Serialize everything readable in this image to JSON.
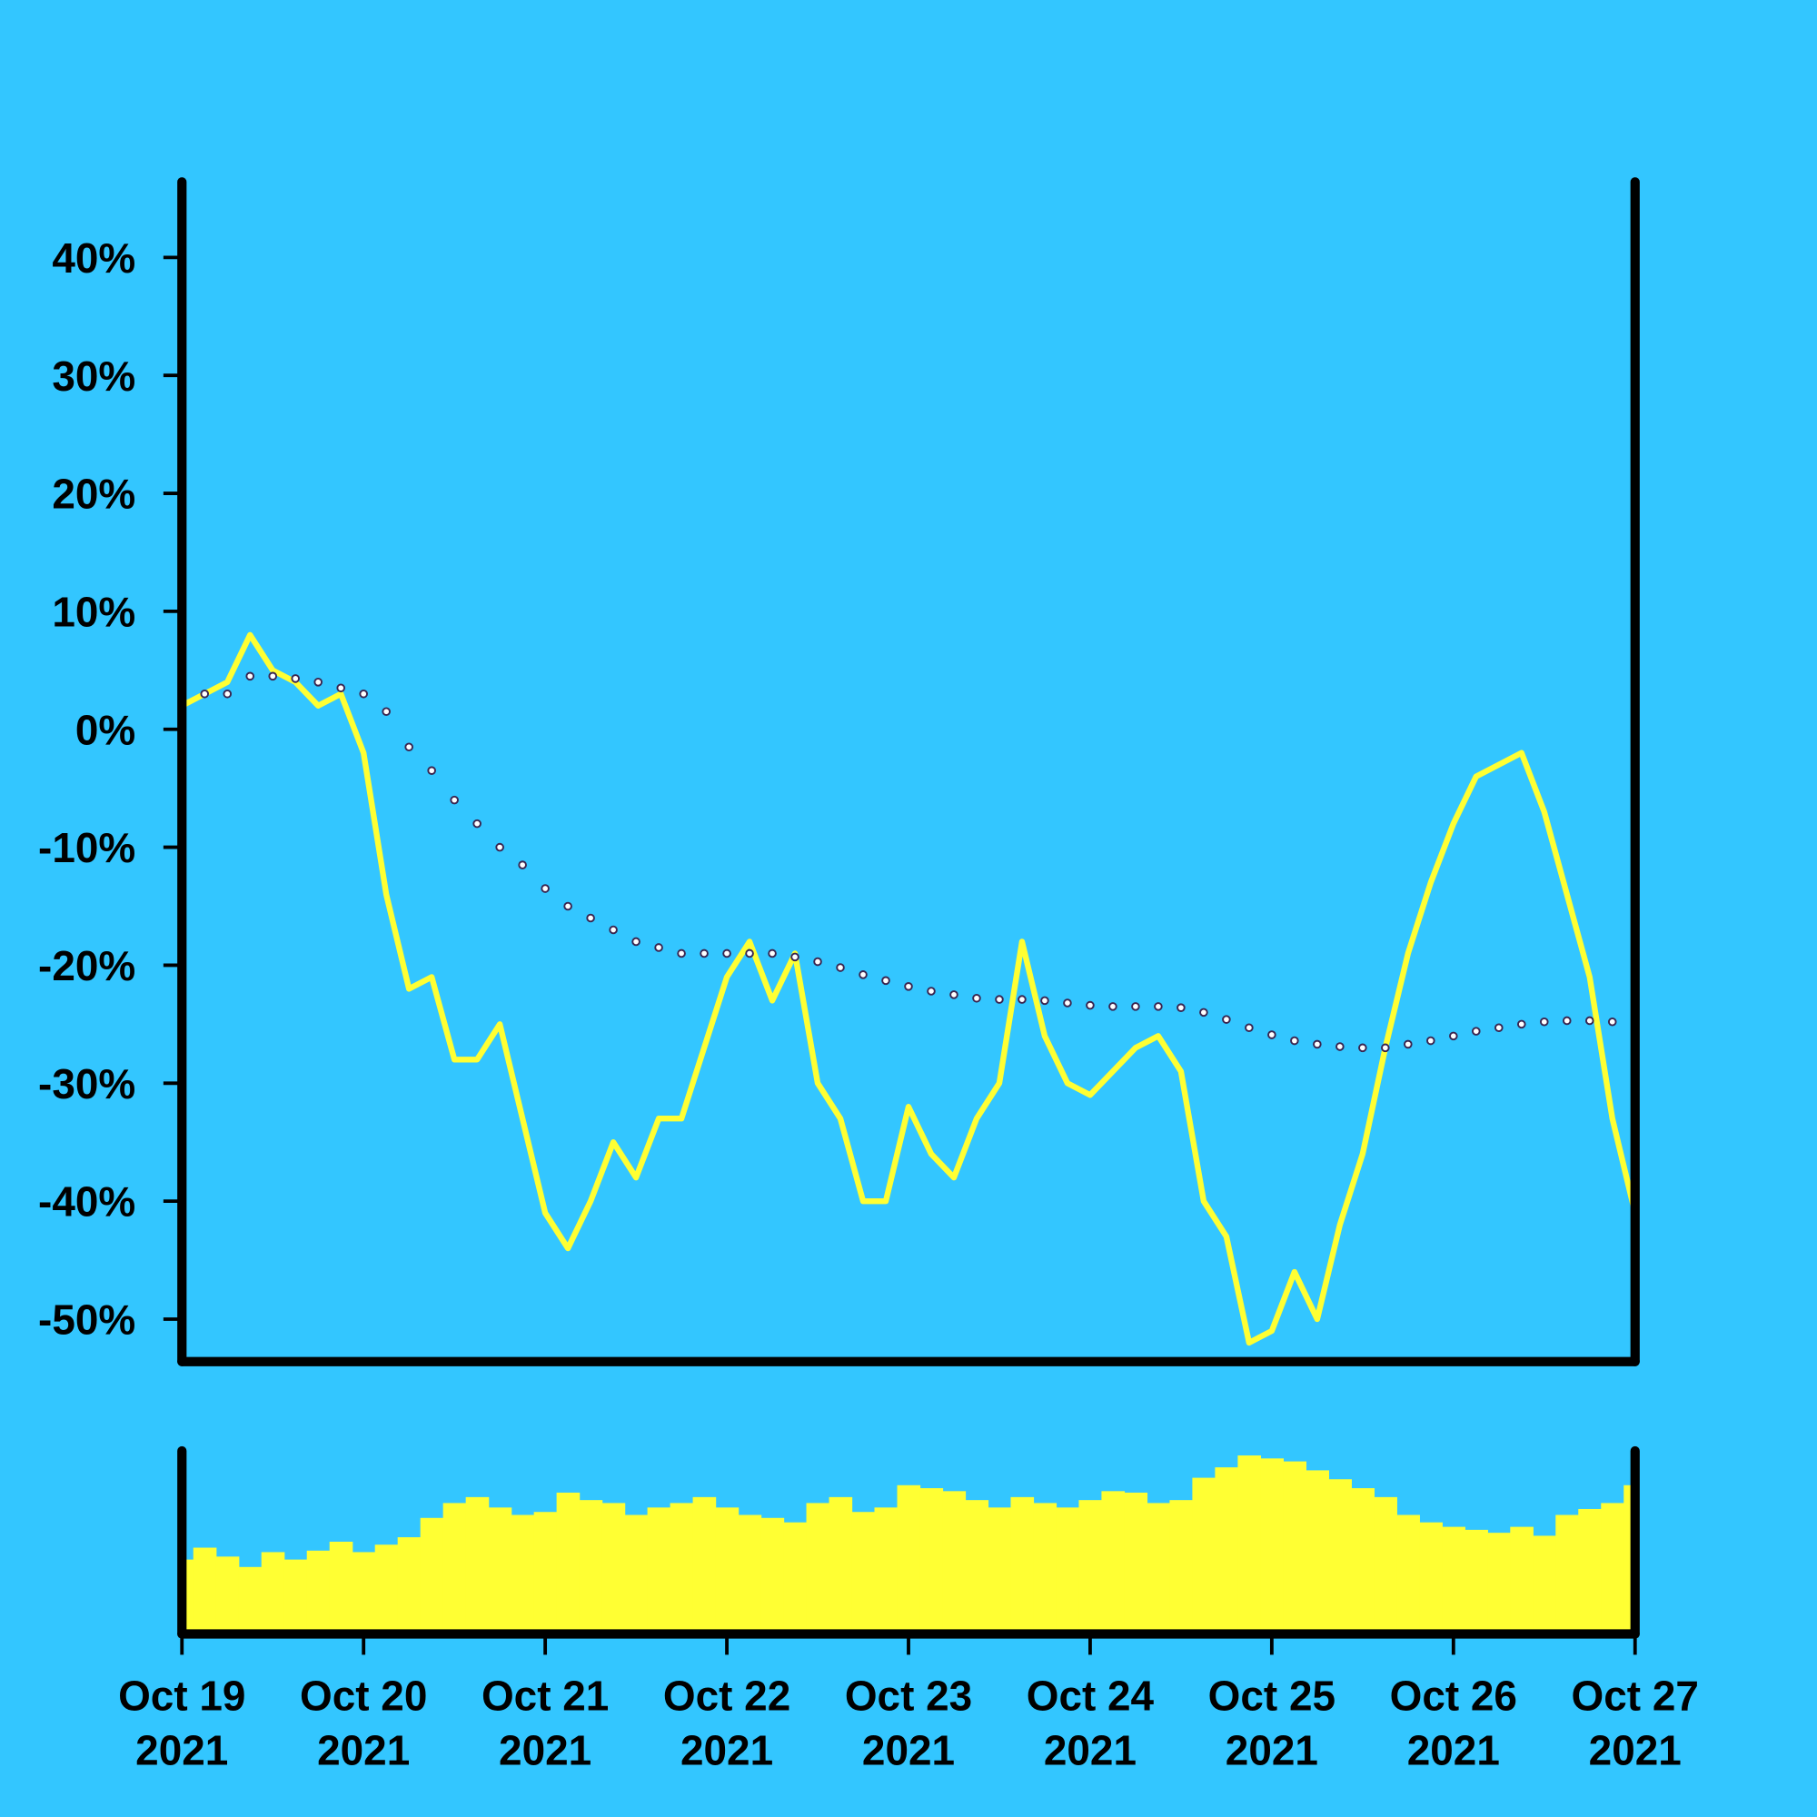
{
  "chart_data": {
    "type": "line",
    "x": [
      0,
      0.125,
      0.25,
      0.375,
      0.5,
      0.625,
      0.75,
      0.875,
      1,
      1.125,
      1.25,
      1.375,
      1.5,
      1.625,
      1.75,
      1.875,
      2,
      2.125,
      2.25,
      2.375,
      2.5,
      2.625,
      2.75,
      2.875,
      3,
      3.125,
      3.25,
      3.375,
      3.5,
      3.625,
      3.75,
      3.875,
      4,
      4.125,
      4.25,
      4.375,
      4.5,
      4.625,
      4.75,
      4.875,
      5,
      5.125,
      5.25,
      5.375,
      5.5,
      5.625,
      5.75,
      5.875,
      6,
      6.125,
      6.25,
      6.375,
      6.5,
      6.625,
      6.75,
      6.875,
      7,
      7.125,
      7.25,
      7.375,
      7.5,
      7.625,
      7.75,
      7.875,
      8
    ],
    "xlim": [
      0,
      8
    ],
    "xticks": [
      {
        "value": 0,
        "label": "Oct 19\n2021"
      },
      {
        "value": 1,
        "label": "Oct 20\n2021"
      },
      {
        "value": 2,
        "label": "Oct 21\n2021"
      },
      {
        "value": 3,
        "label": "Oct 22\n2021"
      },
      {
        "value": 4,
        "label": "Oct 23\n2021"
      },
      {
        "value": 5,
        "label": "Oct 24\n2021"
      },
      {
        "value": 6,
        "label": "Oct 25\n2021"
      },
      {
        "value": 7,
        "label": "Oct 26\n2021"
      },
      {
        "value": 8,
        "label": "Oct 27\n2021"
      }
    ],
    "ylim": [
      -53.6,
      46.4
    ],
    "yticks": [
      {
        "value": 40,
        "label": "40%"
      },
      {
        "value": 30,
        "label": "30%"
      },
      {
        "value": 20,
        "label": "20%"
      },
      {
        "value": 10,
        "label": "10%"
      },
      {
        "value": 0,
        "label": "0%"
      },
      {
        "value": -10,
        "label": "-10%"
      },
      {
        "value": -20,
        "label": "-20%"
      },
      {
        "value": -30,
        "label": "-30%"
      },
      {
        "value": -40,
        "label": "-40%"
      },
      {
        "value": -50,
        "label": "-50%"
      }
    ],
    "series": [
      {
        "color": "#ffff33",
        "style": "line",
        "values": [
          2,
          3,
          4,
          8,
          5,
          4,
          2,
          3,
          -2,
          -14,
          -22,
          -21,
          -28,
          -28,
          -25,
          -33,
          -41,
          -44,
          -40,
          -35,
          -38,
          -33,
          -33,
          -27,
          -21,
          -18,
          -23,
          -19,
          -30,
          -33,
          -40,
          -40,
          -32,
          -36,
          -38,
          -33,
          -30,
          -18,
          -26,
          -30,
          -31,
          -29,
          -27,
          -26,
          -29,
          -40,
          -43,
          -52,
          -51,
          -46,
          -50,
          -42,
          -36,
          -27,
          -19,
          -13,
          -8,
          -4,
          -3,
          -2,
          -7,
          -14,
          -21,
          -33,
          -41
        ]
      },
      {
        "color": "#ffffff",
        "style": "markers",
        "values": [
          3.5,
          3,
          3,
          4.5,
          4.5,
          4.3,
          4,
          3.5,
          3,
          1.5,
          -1.5,
          -3.5,
          -6,
          -8,
          -10,
          -11.5,
          -13.5,
          -15,
          -16,
          -17,
          -18,
          -18.5,
          -19,
          -19,
          -19,
          -19,
          -19,
          -19.3,
          -19.7,
          -20.2,
          -20.8,
          -21.3,
          -21.8,
          -22.2,
          -22.5,
          -22.8,
          -22.9,
          -22.9,
          -23,
          -23.2,
          -23.4,
          -23.5,
          -23.5,
          -23.5,
          -23.6,
          -24,
          -24.6,
          -25.3,
          -25.9,
          -26.4,
          -26.7,
          -26.9,
          -27,
          -27,
          -26.7,
          -26.4,
          -26,
          -25.6,
          -25.3,
          -25,
          -24.8,
          -24.7,
          -24.7,
          -24.8,
          -25
        ]
      }
    ],
    "volume": {
      "color": "#ffff33",
      "values": [
        50,
        58,
        52,
        45,
        55,
        50,
        56,
        62,
        55,
        60,
        65,
        78,
        88,
        92,
        85,
        80,
        82,
        95,
        90,
        88,
        80,
        85,
        88,
        92,
        85,
        80,
        78,
        75,
        88,
        92,
        82,
        85,
        100,
        98,
        96,
        90,
        85,
        92,
        88,
        85,
        90,
        96,
        95,
        88,
        90,
        105,
        112,
        120,
        118,
        116,
        110,
        104,
        98,
        92,
        80,
        75,
        72,
        70,
        68,
        72,
        66,
        80,
        84,
        88,
        100
      ]
    }
  }
}
